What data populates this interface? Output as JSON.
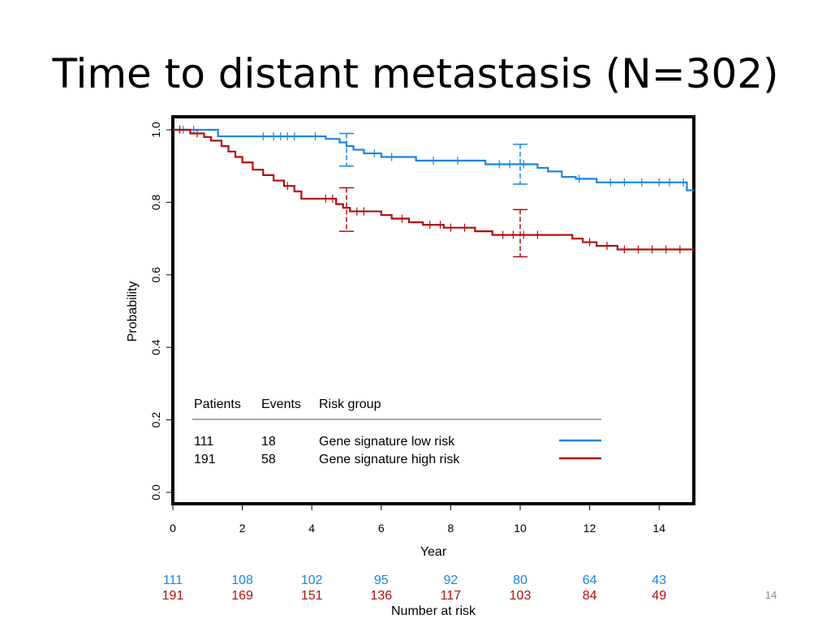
{
  "slide": {
    "title": "Time to distant metastasis (N=302)",
    "page_number": "14"
  },
  "colors": {
    "low_risk": "#1a85e0",
    "high_risk": "#b20d0d",
    "axis": "#000000"
  },
  "chart_data": {
    "type": "line",
    "xlabel": "Year",
    "ylabel": "Probability",
    "xlim": [
      0,
      15
    ],
    "ylim": [
      0.0,
      1.0
    ],
    "x_ticks": [
      "0",
      "2",
      "4",
      "6",
      "8",
      "10",
      "12",
      "14"
    ],
    "y_ticks": [
      "0.0",
      "0.2",
      "0.4",
      "0.6",
      "0.8",
      "1.0"
    ],
    "legend": {
      "headers": [
        "Patients",
        "Events",
        "Risk group"
      ],
      "rows": [
        {
          "patients": "111",
          "events": "18",
          "group": "Gene signature low risk"
        },
        {
          "patients": "191",
          "events": "58",
          "group": "Gene signature high risk"
        }
      ]
    },
    "series": [
      {
        "name": "Gene signature low risk",
        "step_x": [
          0,
          0.5,
          1.3,
          4.4,
          4.8,
          5.0,
          5.2,
          5.5,
          6.0,
          7.0,
          9.0,
          10.5,
          10.8,
          11.2,
          11.6,
          12.2,
          14.8,
          15.0
        ],
        "step_y": [
          1.0,
          1.0,
          0.982,
          0.975,
          0.965,
          0.955,
          0.945,
          0.935,
          0.925,
          0.915,
          0.905,
          0.895,
          0.885,
          0.87,
          0.865,
          0.855,
          0.833,
          0.833
        ],
        "censor_x": [
          0.3,
          0.6,
          2.6,
          2.9,
          3.1,
          3.3,
          3.5,
          4.1,
          5.8,
          6.3,
          7.5,
          8.2,
          9.4,
          9.7,
          10.1,
          11.7,
          12.6,
          13.0,
          13.5,
          14.0,
          14.3,
          14.7
        ],
        "ci_x": [
          5.0,
          10.0
        ],
        "ci_lower": [
          0.9,
          0.85
        ],
        "ci_upper": [
          0.99,
          0.96
        ]
      },
      {
        "name": "Gene signature high risk",
        "step_x": [
          0,
          0.5,
          0.9,
          1.1,
          1.4,
          1.6,
          1.8,
          2.0,
          2.3,
          2.6,
          2.9,
          3.2,
          3.5,
          3.7,
          4.7,
          4.9,
          5.1,
          6.0,
          6.3,
          6.8,
          7.2,
          7.8,
          8.7,
          9.2,
          11.5,
          11.8,
          12.2,
          12.8,
          15.0
        ],
        "step_y": [
          1.0,
          0.99,
          0.98,
          0.97,
          0.955,
          0.94,
          0.925,
          0.91,
          0.89,
          0.875,
          0.86,
          0.845,
          0.83,
          0.81,
          0.795,
          0.785,
          0.775,
          0.765,
          0.755,
          0.745,
          0.738,
          0.73,
          0.72,
          0.71,
          0.7,
          0.69,
          0.68,
          0.67,
          0.67
        ],
        "censor_x": [
          0.2,
          0.7,
          3.3,
          4.4,
          4.6,
          5.3,
          5.5,
          6.6,
          7.4,
          7.7,
          8.0,
          8.4,
          9.5,
          9.8,
          10.1,
          10.5,
          12.0,
          12.5,
          13.0,
          13.4,
          13.8,
          14.2,
          14.6
        ],
        "ci_x": [
          5.0,
          10.0
        ],
        "ci_lower": [
          0.72,
          0.65
        ],
        "ci_upper": [
          0.84,
          0.78
        ]
      }
    ],
    "number_at_risk": {
      "label": "Number at risk",
      "x": [
        0,
        2,
        4,
        6,
        8,
        10,
        12,
        14
      ],
      "low_risk": [
        "111",
        "108",
        "102",
        "95",
        "92",
        "80",
        "64",
        "43"
      ],
      "high_risk": [
        "191",
        "169",
        "151",
        "136",
        "117",
        "103",
        "84",
        "49"
      ]
    }
  }
}
